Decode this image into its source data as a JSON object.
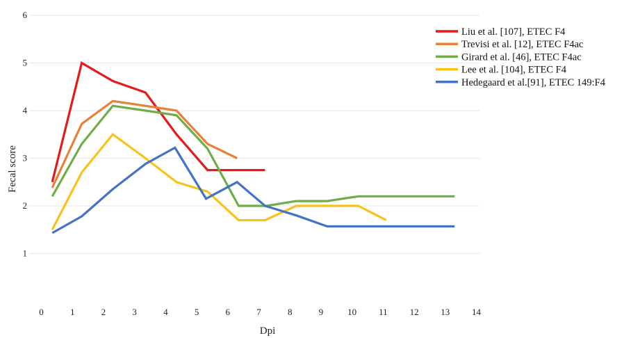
{
  "chart_data": {
    "type": "line",
    "title": "",
    "xlabel": "Dpi",
    "ylabel": "Fecal score",
    "xlim": [
      0,
      14
    ],
    "ylim": [
      0,
      6
    ],
    "xticks": [
      "0",
      "1",
      "2",
      "3",
      "4",
      "5",
      "6",
      "7",
      "8",
      "9",
      "10",
      "11",
      "12",
      "13",
      "14"
    ],
    "yticks": [
      "1",
      "2",
      "3",
      "4",
      "5",
      "6"
    ],
    "grid": "horizontal",
    "legend_position": "top-right",
    "series": [
      {
        "name": "Liu et al. [107], ETEC F4",
        "color": "#e41a1c",
        "x": [
          0.35,
          1.3,
          2.3,
          3.35,
          4.35,
          5.35,
          6.35,
          7.2
        ],
        "y": [
          2.5,
          5.0,
          4.62,
          4.38,
          3.5,
          2.75,
          2.75,
          2.75
        ]
      },
      {
        "name": "Trevisi et al. [12], ETEC F4ac",
        "color": "#e8803a",
        "x": [
          0.35,
          1.3,
          2.3,
          3.35,
          4.35,
          5.35,
          6.3
        ],
        "y": [
          2.38,
          3.72,
          4.2,
          4.1,
          4.0,
          3.3,
          3.0
        ]
      },
      {
        "name": "Girard et al. [46], ETEC F4ac",
        "color": "#70ad47",
        "x": [
          0.35,
          1.3,
          2.3,
          3.35,
          4.35,
          5.35,
          6.35,
          7.25,
          8.2,
          9.2,
          10.2,
          11.2,
          12.2,
          13.3
        ],
        "y": [
          2.2,
          3.3,
          4.1,
          4.0,
          3.9,
          3.2,
          2.0,
          2.0,
          2.1,
          2.1,
          2.2,
          2.2,
          2.2,
          2.2
        ]
      },
      {
        "name": "Lee et al. [104], ETEC F4",
        "color": "#f7c31a",
        "x": [
          0.35,
          1.3,
          2.3,
          3.35,
          4.35,
          5.35,
          6.35,
          7.2,
          8.2,
          9.2,
          10.2,
          11.1
        ],
        "y": [
          1.5,
          2.7,
          3.5,
          3.0,
          2.5,
          2.3,
          1.7,
          1.7,
          2.0,
          2.0,
          2.0,
          1.7
        ]
      },
      {
        "name": "Hedegaard et al.[91], ETEC 149:F4",
        "color": "#4472c4",
        "x": [
          0.35,
          1.3,
          2.3,
          3.35,
          4.3,
          5.3,
          6.3,
          7.2,
          8.2,
          9.2,
          10.2,
          11.2,
          12.2,
          13.3
        ],
        "y": [
          1.43,
          1.78,
          2.35,
          2.88,
          3.22,
          2.15,
          2.5,
          2.0,
          1.8,
          1.57,
          1.57,
          1.57,
          1.57,
          1.57
        ]
      }
    ]
  }
}
